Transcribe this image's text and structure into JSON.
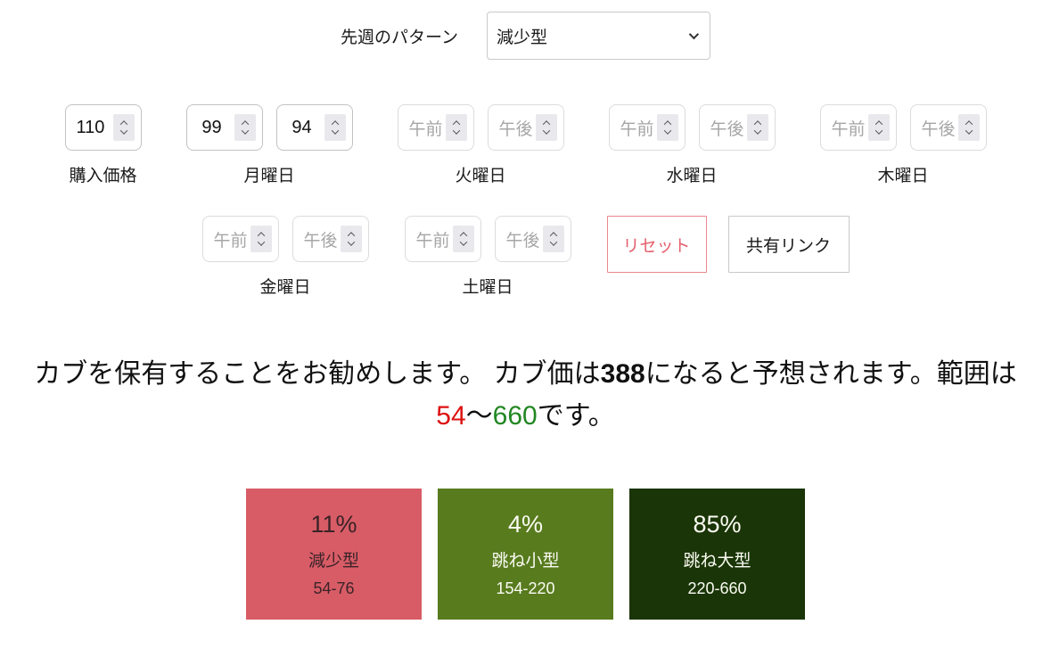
{
  "week": {
    "pattern_label": "先週のパターン",
    "pattern_value": "減少型"
  },
  "row1": [
    {
      "label": "購入価格",
      "fields": [
        {
          "value": "110"
        }
      ]
    },
    {
      "label": "月曜日",
      "fields": [
        {
          "value": "99"
        },
        {
          "value": "94"
        }
      ]
    },
    {
      "label": "火曜日",
      "fields": [
        {
          "placeholder": "午前"
        },
        {
          "placeholder": "午後"
        }
      ]
    },
    {
      "label": "水曜日",
      "fields": [
        {
          "placeholder": "午前"
        },
        {
          "placeholder": "午後"
        }
      ]
    },
    {
      "label": "木曜日",
      "fields": [
        {
          "placeholder": "午前"
        },
        {
          "placeholder": "午後"
        }
      ]
    }
  ],
  "row2": [
    {
      "label": "金曜日",
      "fields": [
        {
          "placeholder": "午前"
        },
        {
          "placeholder": "午後"
        }
      ]
    },
    {
      "label": "土曜日",
      "fields": [
        {
          "placeholder": "午前"
        },
        {
          "placeholder": "午後"
        }
      ]
    }
  ],
  "buttons": {
    "reset": "リセット",
    "share": "共有リンク"
  },
  "message": {
    "segment1": "カブを保有することをお勧めします。 カブ価は",
    "predicted_price": "388",
    "segment2": "になると予想されます。範囲は",
    "min_price": "54",
    "separator": "〜",
    "max_price": "660",
    "segment3": "です。"
  },
  "outcomes": [
    {
      "percent": "11%",
      "pattern": "減少型",
      "range": "54-76",
      "bg_color": "#d85c66",
      "text_color": "#3a2328"
    },
    {
      "percent": "4%",
      "pattern": "跳ね小型",
      "range": "154-220",
      "bg_color": "#587b1e",
      "text_color": "#fbfbf3"
    },
    {
      "percent": "85%",
      "pattern": "跳ね大型",
      "range": "220-660",
      "bg_color": "#1a3507",
      "text_color": "#fbfbf3"
    }
  ],
  "colors": {
    "min_price_text": "#dd1111",
    "max_price_text": "#218721",
    "reset_accent": "#e4606d"
  }
}
